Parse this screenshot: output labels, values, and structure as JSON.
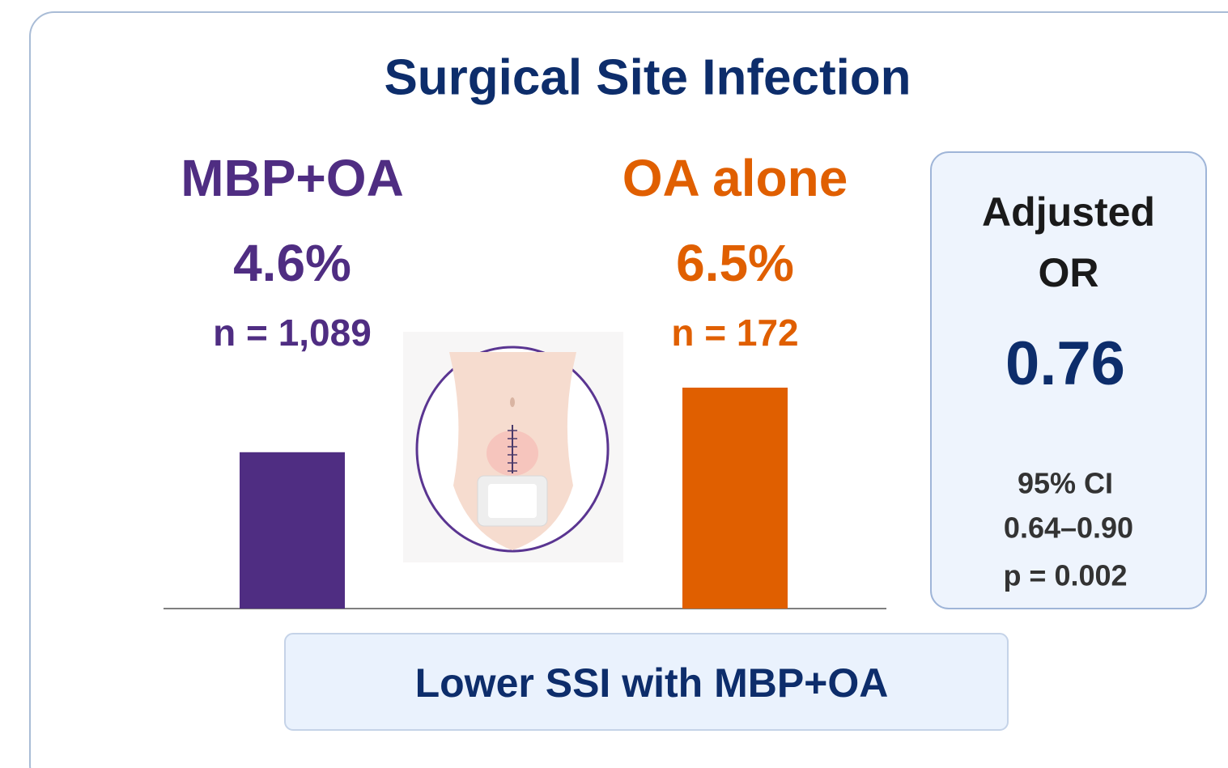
{
  "chart_data": {
    "type": "bar",
    "title": "Surgical Site Infection",
    "categories": [
      "MBP+OA",
      "OA alone"
    ],
    "values": [
      4.6,
      6.5
    ],
    "value_labels": [
      "4.6%",
      "6.5%"
    ],
    "n_labels": [
      "n = 1,089",
      "n = 172"
    ],
    "colors": [
      "#4f2d82",
      "#e05f00"
    ]
  },
  "or_panel": {
    "label": "Adjusted OR",
    "value": 0.76,
    "ci_label": "95% CI",
    "ci": "0.64–0.90",
    "p": "p = 0.002"
  },
  "callout": "Lower SSI with MBP+OA"
}
